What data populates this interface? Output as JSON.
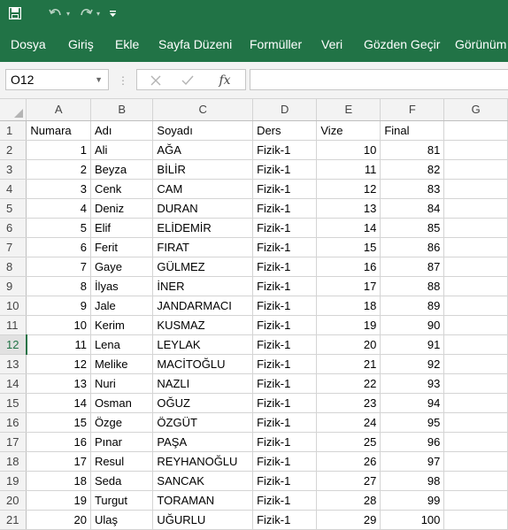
{
  "qat": {
    "save_icon": "save-icon",
    "undo_icon": "undo-icon",
    "redo_icon": "redo-icon",
    "customize_icon": "customize-icon"
  },
  "tabs": [
    "Dosya",
    "Giriş",
    "Ekle",
    "Sayfa Düzeni",
    "Formüller",
    "Veri",
    "Gözden Geçir",
    "Görünüm"
  ],
  "formula_bar": {
    "name_box": "O12",
    "formula": ""
  },
  "sheet": {
    "columns": [
      "A",
      "B",
      "C",
      "D",
      "E",
      "F",
      "G"
    ],
    "active_row": 12,
    "rows": [
      [
        "1",
        "Numara",
        "Adı",
        "Soyadı",
        "Ders",
        "Vize",
        "Final",
        ""
      ],
      [
        "2",
        "1",
        "Ali",
        "AĞA",
        "Fizik-1",
        "10",
        "81",
        ""
      ],
      [
        "3",
        "2",
        "Beyza",
        "BİLİR",
        "Fizik-1",
        "11",
        "82",
        ""
      ],
      [
        "4",
        "3",
        "Cenk",
        "CAM",
        "Fizik-1",
        "12",
        "83",
        ""
      ],
      [
        "5",
        "4",
        "Deniz",
        "DURAN",
        "Fizik-1",
        "13",
        "84",
        ""
      ],
      [
        "6",
        "5",
        "Elif",
        "ELİDEMİR",
        "Fizik-1",
        "14",
        "85",
        ""
      ],
      [
        "7",
        "6",
        "Ferit",
        "FIRAT",
        "Fizik-1",
        "15",
        "86",
        ""
      ],
      [
        "8",
        "7",
        "Gaye",
        "GÜLMEZ",
        "Fizik-1",
        "16",
        "87",
        ""
      ],
      [
        "9",
        "8",
        "İlyas",
        "İNER",
        "Fizik-1",
        "17",
        "88",
        ""
      ],
      [
        "10",
        "9",
        "Jale",
        "JANDARMACI",
        "Fizik-1",
        "18",
        "89",
        ""
      ],
      [
        "11",
        "10",
        "Kerim",
        "KUSMAZ",
        "Fizik-1",
        "19",
        "90",
        ""
      ],
      [
        "12",
        "11",
        "Lena",
        "LEYLAK",
        "Fizik-1",
        "20",
        "91",
        ""
      ],
      [
        "13",
        "12",
        "Melike",
        "MACİTOĞLU",
        "Fizik-1",
        "21",
        "92",
        ""
      ],
      [
        "14",
        "13",
        "Nuri",
        "NAZLI",
        "Fizik-1",
        "22",
        "93",
        ""
      ],
      [
        "15",
        "14",
        "Osman",
        "OĞUZ",
        "Fizik-1",
        "23",
        "94",
        ""
      ],
      [
        "16",
        "15",
        "Özge",
        "ÖZGÜT",
        "Fizik-1",
        "24",
        "95",
        ""
      ],
      [
        "17",
        "16",
        "Pınar",
        "PAŞA",
        "Fizik-1",
        "25",
        "96",
        ""
      ],
      [
        "18",
        "17",
        "Resul",
        "REYHANOĞLU",
        "Fizik-1",
        "26",
        "97",
        ""
      ],
      [
        "19",
        "18",
        "Seda",
        "SANCAK",
        "Fizik-1",
        "27",
        "98",
        ""
      ],
      [
        "20",
        "19",
        "Turgut",
        "TORAMAN",
        "Fizik-1",
        "28",
        "99",
        ""
      ],
      [
        "21",
        "20",
        "Ulaş",
        "UĞURLU",
        "Fizik-1",
        "29",
        "100",
        ""
      ]
    ]
  },
  "colors": {
    "ribbon": "#217346",
    "header_bg": "#f3f3f3",
    "gridline": "#d4d4d4"
  }
}
